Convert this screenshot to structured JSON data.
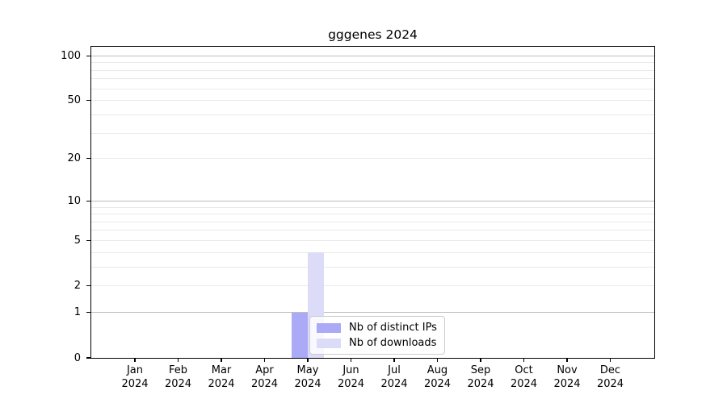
{
  "chart_data": {
    "type": "bar",
    "title": "gggenes 2024",
    "categories": [
      "Jan",
      "Feb",
      "Mar",
      "Apr",
      "May",
      "Jun",
      "Jul",
      "Aug",
      "Sep",
      "Oct",
      "Nov",
      "Dec"
    ],
    "year": "2024",
    "series": [
      {
        "name": "Nb of distinct IPs",
        "color": "#aaaaf6",
        "values": [
          0,
          0,
          0,
          0,
          1,
          0,
          0,
          0,
          0,
          0,
          0,
          0
        ]
      },
      {
        "name": "Nb of downloads",
        "color": "#dcdcf8",
        "values": [
          0,
          0,
          0,
          0,
          4,
          0,
          0,
          0,
          0,
          0,
          0,
          0
        ]
      }
    ],
    "xlabel": "",
    "ylabel": "",
    "yscale": "log1p",
    "ylim": [
      0,
      115
    ],
    "y_ticks": [
      0,
      1,
      2,
      5,
      10,
      20,
      50,
      100
    ],
    "y_grid_major": [
      1,
      10,
      100
    ],
    "y_grid_minor": [
      2,
      3,
      4,
      5,
      6,
      7,
      8,
      9,
      20,
      30,
      40,
      50,
      60,
      70,
      80,
      90
    ],
    "grid": true,
    "legend_position": "lower center"
  },
  "colors": {
    "grid_major": "#bdbdbd",
    "grid_minor": "#eaeaea",
    "axis": "#000000"
  }
}
